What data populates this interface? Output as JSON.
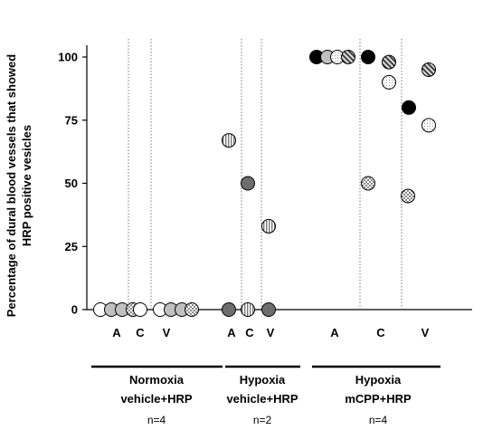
{
  "chart_data": {
    "type": "scatter",
    "ylabel_lines": [
      "Percentage of dural blood vessels that showed",
      "HRP positive vesicles"
    ],
    "yticks": [
      0,
      25,
      50,
      75,
      100
    ],
    "ylim": [
      0,
      100
    ],
    "grid": false,
    "groups": [
      {
        "name_lines": [
          "Normoxia",
          "vehicle+HRP"
        ],
        "n_label": "n=4",
        "regions": [
          {
            "label": "A",
            "points": [
              {
                "y": 0,
                "pattern": "white"
              },
              {
                "y": 0,
                "pattern": "lightgray"
              },
              {
                "y": 0,
                "pattern": "lightgray"
              },
              {
                "y": 0,
                "pattern": "checker"
              }
            ]
          },
          {
            "label": "C",
            "points": [
              {
                "y": 0,
                "pattern": "white"
              }
            ]
          },
          {
            "label": "V",
            "points": [
              {
                "y": 0,
                "pattern": "white"
              },
              {
                "y": 0,
                "pattern": "lightgray"
              },
              {
                "y": 0,
                "pattern": "lightgray"
              },
              {
                "y": 0,
                "pattern": "checker"
              }
            ]
          }
        ]
      },
      {
        "name_lines": [
          "Hypoxia",
          "vehicle+HRP"
        ],
        "n_label": "n=2",
        "regions": [
          {
            "label": "A",
            "points": [
              {
                "y": 67,
                "pattern": "vstripe"
              },
              {
                "y": 0,
                "pattern": "darkgray"
              }
            ]
          },
          {
            "label": "C",
            "points": [
              {
                "y": 50,
                "pattern": "darkgray"
              },
              {
                "y": 0,
                "pattern": "vstripe"
              }
            ]
          },
          {
            "label": "V",
            "points": [
              {
                "y": 33,
                "pattern": "vstripe"
              },
              {
                "y": 0,
                "pattern": "darkgray"
              }
            ]
          }
        ]
      },
      {
        "name_lines": [
          "Hypoxia",
          "mCPP+HRP"
        ],
        "n_label": "n=4",
        "regions": [
          {
            "label": "A",
            "points": [
              {
                "y": 100,
                "pattern": "black"
              },
              {
                "y": 100,
                "pattern": "lightgray"
              },
              {
                "y": 100,
                "pattern": "dotted"
              },
              {
                "y": 100,
                "pattern": "diagonal"
              }
            ]
          },
          {
            "label": "C",
            "points": [
              {
                "y": 100,
                "pattern": "black"
              },
              {
                "y": 98,
                "pattern": "diagonal"
              },
              {
                "y": 90,
                "pattern": "dotted"
              },
              {
                "y": 50,
                "pattern": "checker"
              }
            ]
          },
          {
            "label": "V",
            "points": [
              {
                "y": 80,
                "pattern": "black"
              },
              {
                "y": 45,
                "pattern": "checker"
              },
              {
                "y": 95,
                "pattern": "diagonal"
              },
              {
                "y": 73,
                "pattern": "dotted"
              }
            ]
          }
        ]
      }
    ]
  },
  "colors": {
    "white": "#ffffff",
    "lightgray": "#c0c0c0",
    "darkgray": "#6d6d6d",
    "black": "#000000",
    "stroke": "#000000"
  }
}
